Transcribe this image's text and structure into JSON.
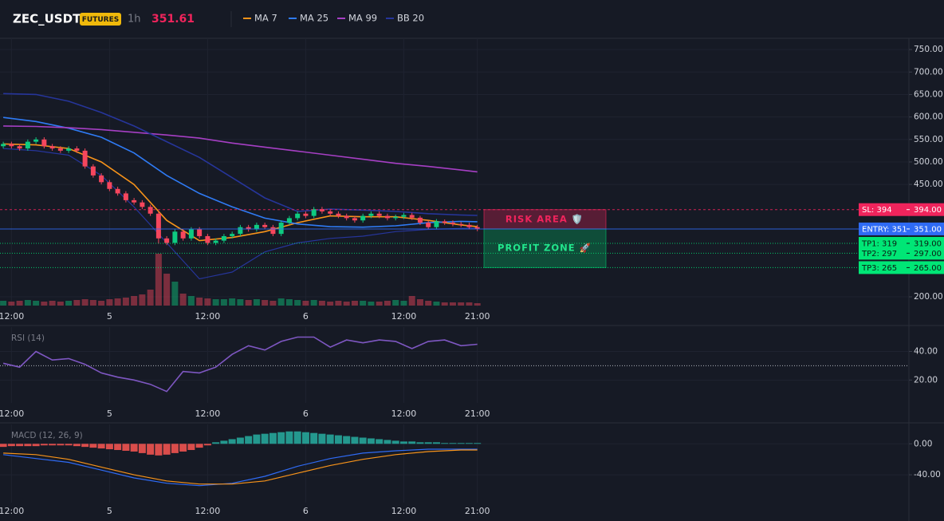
{
  "header": {
    "symbol": "ZEC_USDT",
    "badge": "FUTURES",
    "interval": "1h",
    "price": "351.61"
  },
  "chart_data": [
    {
      "type": "candlestick",
      "grid": true,
      "x": [
        -1,
        0,
        1,
        2,
        3,
        4,
        5,
        6,
        7,
        8,
        9,
        10,
        11,
        12,
        13,
        14,
        15,
        16,
        17,
        18,
        19,
        20,
        21,
        22,
        23,
        24,
        25,
        26,
        27,
        28,
        29,
        30,
        31,
        32,
        33,
        34,
        35,
        36,
        37,
        38,
        39,
        40,
        41,
        42,
        43,
        44,
        45,
        46,
        47,
        48,
        49,
        50,
        51,
        52,
        53,
        54,
        55,
        56,
        57
      ],
      "open": [
        535,
        540,
        535,
        530,
        545,
        550,
        535,
        530,
        525,
        530,
        525,
        490,
        470,
        455,
        440,
        430,
        415,
        410,
        400,
        385,
        330,
        320,
        345,
        330,
        350,
        335,
        320,
        325,
        335,
        340,
        355,
        350,
        360,
        355,
        340,
        365,
        375,
        385,
        380,
        395,
        390,
        385,
        380,
        375,
        370,
        380,
        385,
        380,
        375,
        378,
        382,
        376,
        365,
        355,
        368,
        365,
        362,
        360,
        355
      ],
      "high": [
        545,
        545,
        540,
        550,
        555,
        555,
        540,
        535,
        535,
        535,
        530,
        495,
        475,
        460,
        445,
        435,
        420,
        415,
        405,
        390,
        335,
        350,
        350,
        355,
        355,
        340,
        330,
        340,
        345,
        360,
        360,
        365,
        365,
        360,
        370,
        380,
        390,
        390,
        400,
        400,
        395,
        390,
        385,
        380,
        385,
        390,
        390,
        385,
        383,
        387,
        387,
        380,
        370,
        373,
        372,
        370,
        367,
        365,
        360
      ],
      "low": [
        530,
        530,
        525,
        525,
        540,
        530,
        525,
        520,
        520,
        520,
        485,
        465,
        450,
        435,
        425,
        410,
        405,
        395,
        380,
        318,
        315,
        315,
        325,
        325,
        330,
        315,
        315,
        320,
        330,
        335,
        345,
        345,
        350,
        335,
        335,
        360,
        370,
        375,
        375,
        385,
        380,
        375,
        370,
        365,
        365,
        375,
        375,
        370,
        370,
        373,
        371,
        360,
        350,
        350,
        360,
        357,
        355,
        350,
        346
      ],
      "close": [
        540,
        535,
        530,
        545,
        550,
        535,
        530,
        525,
        530,
        525,
        490,
        470,
        455,
        440,
        430,
        415,
        410,
        400,
        385,
        330,
        320,
        345,
        330,
        350,
        335,
        320,
        325,
        335,
        340,
        355,
        350,
        360,
        355,
        340,
        365,
        375,
        385,
        380,
        395,
        390,
        385,
        380,
        375,
        370,
        380,
        385,
        380,
        375,
        378,
        382,
        376,
        365,
        355,
        368,
        365,
        362,
        360,
        355,
        351.61
      ],
      "volume": [
        6,
        5,
        6,
        7,
        6,
        5,
        6,
        5,
        6,
        7,
        8,
        7,
        6,
        8,
        9,
        10,
        12,
        14,
        20,
        65,
        40,
        30,
        15,
        12,
        10,
        9,
        8,
        8,
        9,
        8,
        7,
        8,
        7,
        6,
        9,
        8,
        7,
        6,
        7,
        6,
        5,
        6,
        5,
        6,
        6,
        5,
        5,
        6,
        7,
        6,
        12,
        8,
        6,
        5,
        4,
        4,
        4,
        4,
        3
      ],
      "up_color": "#0ecb81",
      "down_color": "#f6465d",
      "series": [
        {
          "name": "MA 7",
          "color": "#f7931a",
          "x": [
            -1,
            3,
            7,
            11,
            15,
            19,
            23,
            27,
            31,
            35,
            39,
            43,
            47,
            51,
            55,
            57
          ],
          "values": [
            540,
            538,
            530,
            500,
            450,
            370,
            325,
            332,
            345,
            365,
            380,
            378,
            378,
            370,
            360,
            356
          ]
        },
        {
          "name": "MA 25",
          "color": "#2f7bf5",
          "x": [
            -1,
            3,
            7,
            11,
            15,
            19,
            23,
            27,
            31,
            35,
            39,
            43,
            47,
            51,
            55,
            57
          ],
          "values": [
            599,
            590,
            575,
            555,
            520,
            470,
            430,
            400,
            375,
            362,
            356,
            355,
            358,
            365,
            368,
            367
          ]
        },
        {
          "name": "MA 99",
          "color": "#a63fc4",
          "x": [
            -1,
            3,
            7,
            11,
            15,
            19,
            23,
            27,
            31,
            35,
            39,
            43,
            47,
            51,
            55,
            57
          ],
          "values": [
            580,
            579,
            576,
            572,
            566,
            560,
            553,
            542,
            533,
            524,
            515,
            506,
            497,
            490,
            482,
            478
          ]
        },
        {
          "name": "BB 20",
          "color": "#26359a",
          "x": [
            -1,
            3,
            7,
            11,
            15,
            19,
            23,
            27,
            31,
            35,
            39,
            43,
            47,
            51,
            55,
            57
          ],
          "values": [
            652,
            650,
            635,
            610,
            580,
            545,
            510,
            465,
            420,
            390,
            395,
            393,
            390,
            385,
            382,
            381
          ],
          "lower": [
            530,
            525,
            515,
            470,
            400,
            320,
            240,
            255,
            300,
            320,
            330,
            335,
            345,
            350,
            352,
            353
          ]
        }
      ],
      "levels": [
        {
          "label": "SL: 394",
          "value": 394,
          "value_label": "394.00",
          "color": "#f0245c",
          "text_color": "#ffffff",
          "style": "dashed"
        },
        {
          "label": "ENTRY: 351",
          "value": 351,
          "value_label": "351.00",
          "color": "#2f6bf5",
          "text_color": "#ffffff",
          "style": "solid"
        },
        {
          "label": "TP1: 319",
          "value": 319,
          "value_label": "319.00",
          "color": "#00e676",
          "text_color": "#0b1a12",
          "style": "dotted"
        },
        {
          "label": "TP2: 297",
          "value": 297,
          "value_label": "297.00",
          "color": "#00e676",
          "text_color": "#0b1a12",
          "style": "dotted"
        },
        {
          "label": "TP3: 265",
          "value": 265,
          "value_label": "265.00",
          "color": "#00e676",
          "text_color": "#0b1a12",
          "style": "dotted"
        }
      ],
      "zones": [
        {
          "label": "RISK AREA 🛡️",
          "from": 394,
          "to": 351,
          "color": "#f0245c",
          "text_color": "#f0245c"
        },
        {
          "label": "PROFIT ZONE 🚀",
          "from": 351,
          "to": 265,
          "color": "#00c46a",
          "text_color": "#22e58c"
        }
      ],
      "xlim": [
        -1.4,
        109.8
      ],
      "xticks": [
        {
          "value": 0,
          "label": "12:00"
        },
        {
          "value": 12,
          "label": "5"
        },
        {
          "value": 24,
          "label": "12:00"
        },
        {
          "value": 36,
          "label": "6"
        },
        {
          "value": 48,
          "label": "12:00"
        },
        {
          "value": 57,
          "label": "21:00"
        }
      ],
      "ylim": [
        177,
        775
      ],
      "yticks": [
        {
          "value": 200,
          "label": "200.00"
        },
        {
          "value": 450,
          "label": "450.00"
        },
        {
          "value": 500,
          "label": "500.00"
        },
        {
          "value": 550,
          "label": "550.00"
        },
        {
          "value": 600,
          "label": "600.00"
        },
        {
          "value": 650,
          "label": "650.00"
        },
        {
          "value": 700,
          "label": "700.00"
        },
        {
          "value": 750,
          "label": "750.00"
        }
      ]
    },
    {
      "type": "line",
      "title": "RSI (14)",
      "grid": true,
      "color": "#7e57c2",
      "reference_line": 30,
      "x": [
        -1,
        1,
        3,
        5,
        7,
        9,
        11,
        13,
        15,
        17,
        19,
        21,
        23,
        25,
        27,
        29,
        31,
        33,
        35,
        37,
        39,
        41,
        43,
        45,
        47,
        49,
        51,
        53,
        55,
        57
      ],
      "values": [
        31.7,
        29,
        40,
        34,
        35,
        31,
        25,
        22,
        20,
        17,
        12,
        26,
        25,
        29,
        38,
        44,
        41,
        47,
        50,
        50,
        43,
        48,
        46,
        48,
        47,
        42,
        47,
        48,
        44,
        45
      ],
      "xlim": [
        -1.4,
        109.8
      ],
      "xticks": [
        {
          "value": 0,
          "label": "12:00"
        },
        {
          "value": 12,
          "label": "5"
        },
        {
          "value": 24,
          "label": "12:00"
        },
        {
          "value": 36,
          "label": "6"
        },
        {
          "value": 48,
          "label": "12:00"
        },
        {
          "value": 57,
          "label": "21:00"
        }
      ],
      "ylim": [
        4,
        57
      ],
      "yticks": [
        {
          "value": 20,
          "label": "20.00"
        },
        {
          "value": 40,
          "label": "40.00"
        }
      ]
    },
    {
      "type": "macd",
      "title": "MACD (12, 26, 9)",
      "grid": true,
      "pos_color": "#26a69a",
      "neg_color": "#ef5350",
      "x": [
        -1,
        0,
        1,
        2,
        3,
        4,
        5,
        6,
        7,
        8,
        9,
        10,
        11,
        12,
        13,
        14,
        15,
        16,
        17,
        18,
        19,
        20,
        21,
        22,
        23,
        24,
        25,
        26,
        27,
        28,
        29,
        30,
        31,
        32,
        33,
        34,
        35,
        36,
        37,
        38,
        39,
        40,
        41,
        42,
        43,
        44,
        45,
        46,
        47,
        48,
        49,
        50,
        51,
        52,
        53,
        54,
        55,
        56,
        57
      ],
      "histogram": [
        -4,
        -3,
        -3,
        -3,
        -3,
        -2,
        -2,
        -2,
        -2,
        -3,
        -4,
        -5,
        -6,
        -7,
        -8,
        -9,
        -10,
        -12,
        -14,
        -15,
        -14,
        -12,
        -10,
        -8,
        -5,
        -2,
        2,
        4,
        6,
        8,
        10,
        12,
        13,
        14,
        15,
        16,
        16,
        15,
        14,
        13,
        12,
        11,
        10,
        9,
        8,
        7,
        6,
        5,
        4,
        3,
        3,
        2,
        2,
        2,
        1,
        1,
        1,
        1,
        1
      ],
      "series": [
        {
          "color": "#2f6bf5",
          "x": [
            -1,
            3,
            7,
            11,
            15,
            19,
            23,
            27,
            31,
            35,
            39,
            43,
            47,
            51,
            55,
            57
          ],
          "values": [
            -14,
            -19,
            -24,
            -34,
            -44,
            -51,
            -54,
            -51,
            -42,
            -29,
            -19,
            -12,
            -9,
            -7,
            -7,
            -7
          ]
        },
        {
          "color": "#f7931a",
          "x": [
            -1,
            3,
            7,
            11,
            15,
            19,
            23,
            27,
            31,
            35,
            39,
            43,
            47,
            51,
            55,
            57
          ],
          "values": [
            -12,
            -14,
            -20,
            -30,
            -40,
            -48,
            -52,
            -52,
            -48,
            -38,
            -28,
            -20,
            -14,
            -10,
            -8,
            -8
          ]
        }
      ],
      "xlim": [
        -1.4,
        109.8
      ],
      "xticks": [
        {
          "value": 0,
          "label": "12:00"
        },
        {
          "value": 12,
          "label": "5"
        },
        {
          "value": 24,
          "label": "12:00"
        },
        {
          "value": 36,
          "label": "6"
        },
        {
          "value": 48,
          "label": "12:00"
        },
        {
          "value": 57,
          "label": "21:00"
        }
      ],
      "ylim": [
        -76,
        25
      ],
      "yticks": [
        {
          "value": -40,
          "label": "-40.00"
        },
        {
          "value": 0,
          "label": "0.00"
        }
      ]
    }
  ]
}
